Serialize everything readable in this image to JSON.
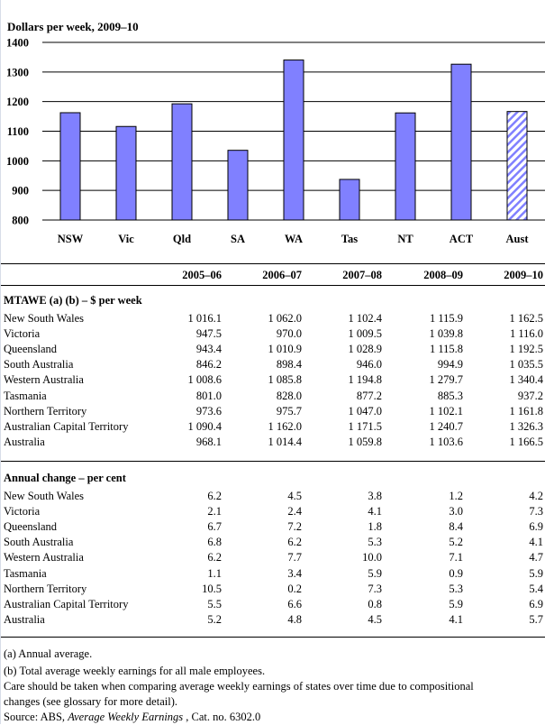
{
  "chart_data": {
    "type": "bar",
    "title": "Dollars per week, 2009–10",
    "categories": [
      "NSW",
      "Vic",
      "Qld",
      "SA",
      "WA",
      "Tas",
      "NT",
      "ACT",
      "Aust"
    ],
    "values": [
      1162.5,
      1116.0,
      1192.5,
      1035.5,
      1340.4,
      937.2,
      1161.8,
      1326.3,
      1166.5
    ],
    "ylim": [
      800,
      1400
    ],
    "yticks": [
      "800",
      "900",
      "1000",
      "1100",
      "1200",
      "1300",
      "1400"
    ],
    "grid": true,
    "bar_color": "#8080ff",
    "highlight": {
      "category": "Aust",
      "style": "hatched"
    }
  },
  "table": {
    "columns": [
      "2005–06",
      "2006–07",
      "2007–08",
      "2008–09",
      "2009–10"
    ],
    "sections": [
      {
        "title": "MTAWE (a) (b) – $ per week",
        "rows": [
          {
            "label": "New South Wales",
            "values": [
              "1 016.1",
              "1 062.0",
              "1 102.4",
              "1 115.9",
              "1 162.5"
            ]
          },
          {
            "label": "Victoria",
            "values": [
              "947.5",
              "970.0",
              "1 009.5",
              "1 039.8",
              "1 116.0"
            ]
          },
          {
            "label": "Queensland",
            "values": [
              "943.4",
              "1 010.9",
              "1 028.9",
              "1 115.8",
              "1 192.5"
            ]
          },
          {
            "label": "South Australia",
            "values": [
              "846.2",
              "898.4",
              "946.0",
              "994.9",
              "1 035.5"
            ]
          },
          {
            "label": "Western Australia",
            "values": [
              "1 008.6",
              "1 085.8",
              "1 194.8",
              "1 279.7",
              "1 340.4"
            ]
          },
          {
            "label": "Tasmania",
            "values": [
              "801.0",
              "828.0",
              "877.2",
              "885.3",
              "937.2"
            ]
          },
          {
            "label": "Northern Territory",
            "values": [
              "973.6",
              "975.7",
              "1 047.0",
              "1 102.1",
              "1 161.8"
            ]
          },
          {
            "label": "Australian Capital Territory",
            "values": [
              "1 090.4",
              "1 162.0",
              "1 171.5",
              "1 240.7",
              "1 326.3"
            ]
          },
          {
            "label": "Australia",
            "values": [
              "968.1",
              "1 014.4",
              "1 059.8",
              "1 103.6",
              "1 166.5"
            ]
          }
        ]
      },
      {
        "title": "Annual change – per cent",
        "rows": [
          {
            "label": "New South Wales",
            "values": [
              "6.2",
              "4.5",
              "3.8",
              "1.2",
              "4.2"
            ]
          },
          {
            "label": "Victoria",
            "values": [
              "2.1",
              "2.4",
              "4.1",
              "3.0",
              "7.3"
            ]
          },
          {
            "label": "Queensland",
            "values": [
              "6.7",
              "7.2",
              "1.8",
              "8.4",
              "6.9"
            ]
          },
          {
            "label": "South Australia",
            "values": [
              "6.8",
              "6.2",
              "5.3",
              "5.2",
              "4.1"
            ]
          },
          {
            "label": "Western Australia",
            "values": [
              "6.2",
              "7.7",
              "10.0",
              "7.1",
              "4.7"
            ]
          },
          {
            "label": "Tasmania",
            "values": [
              "1.1",
              "3.4",
              "5.9",
              "0.9",
              "5.9"
            ]
          },
          {
            "label": "Northern Territory",
            "values": [
              "10.5",
              "0.2",
              "7.3",
              "5.3",
              "5.4"
            ]
          },
          {
            "label": "Australian Capital Territory",
            "values": [
              "5.5",
              "6.6",
              "0.8",
              "5.9",
              "6.9"
            ]
          },
          {
            "label": "Australia",
            "values": [
              "5.2",
              "4.8",
              "4.5",
              "4.1",
              "5.7"
            ]
          }
        ]
      }
    ]
  },
  "footnotes": {
    "a": "(a) Annual average.",
    "b": "(b) Total average weekly earnings for all male employees.",
    "care1": "Care should be taken when comparing average weekly earnings of states over time due to compositional",
    "care2": "changes (see glossary for more detail).",
    "source_prefix": "Source: ABS, ",
    "source_title": "Average Weekly Earnings",
    "source_suffix": " , Cat. no. 6302.0"
  }
}
